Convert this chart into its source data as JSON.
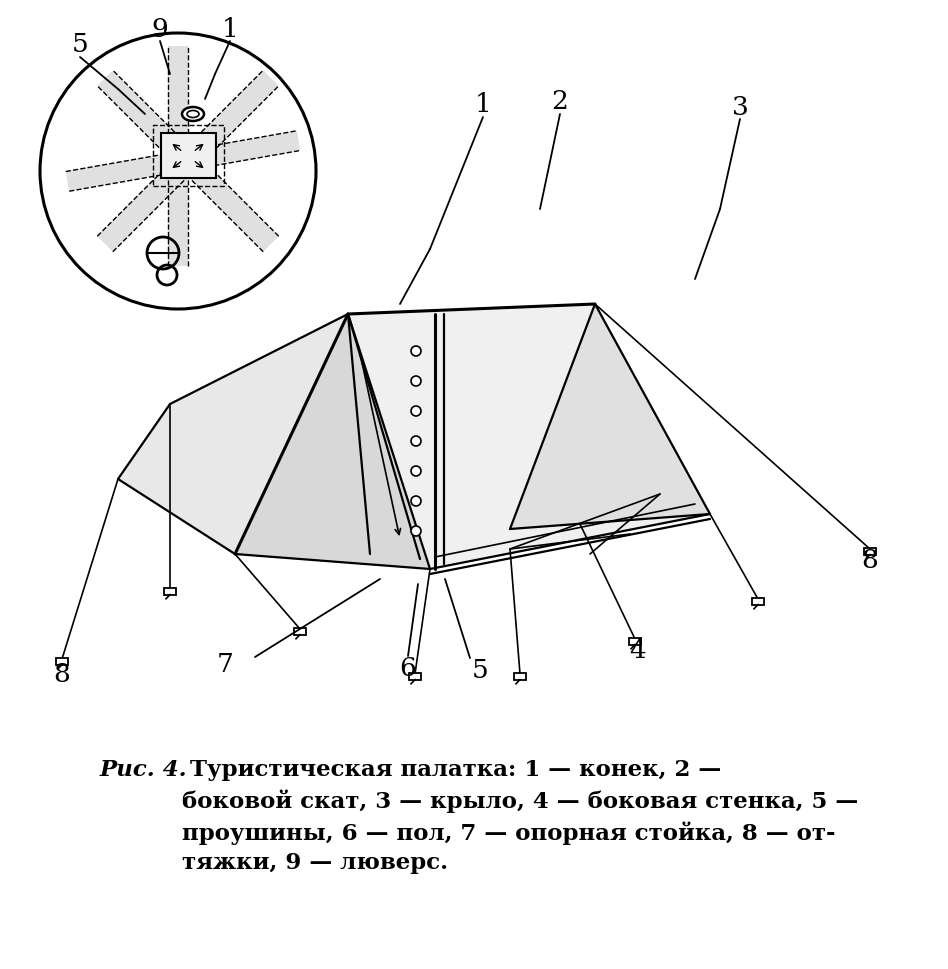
{
  "bg_color": "#ffffff",
  "line_color": "#000000",
  "figure_size": [
    9.48,
    9.69
  ],
  "dpi": 100,
  "caption_italic": "Рис. 4.",
  "caption_rest": " Туристическая палатка: 1 — конек, 2 —\nбоковой скат, 3 — крыло, 4 — боковая стенка, 5 —\nпроушины, 6 — пол, 7 — опорная стойка, 8 — от-\nтяжки, 9 — люверс."
}
